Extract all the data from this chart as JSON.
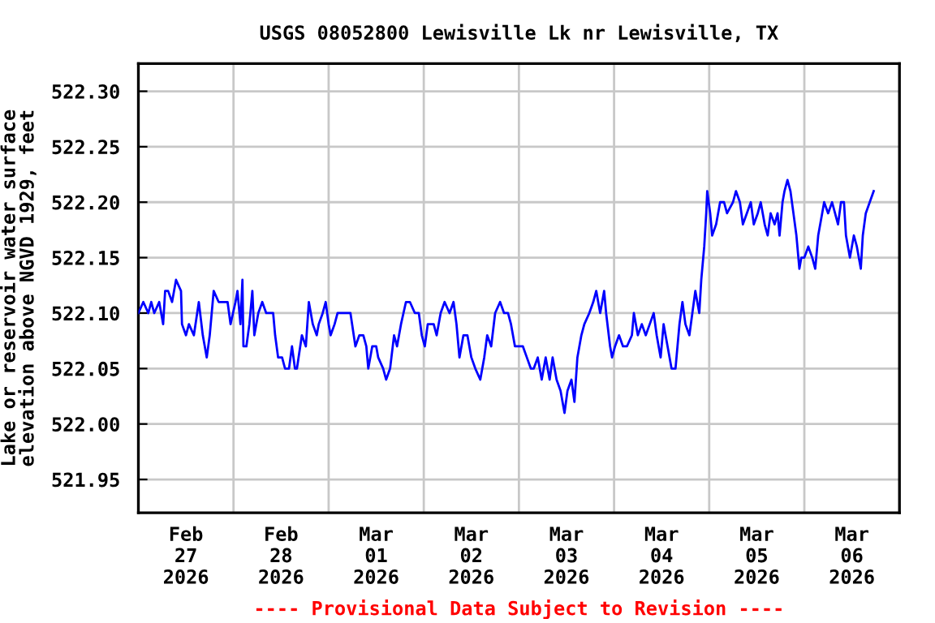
{
  "chart_data": {
    "type": "line",
    "title": "USGS 08052800 Lewisville Lk nr Lewisville, TX",
    "ylabel": "Lake or reservoir water surface\nelevation above NGVD 1929, feet",
    "annotations": [
      "---- Provisional Data Subject to Revision ----"
    ],
    "xlim": [
      "2026-02-27",
      "2026-03-07"
    ],
    "xticks": [
      {
        "value": "2026-02-28",
        "label": null
      },
      {
        "value": "2026-03-01",
        "label": null
      },
      {
        "value": "2026-03-02",
        "label": null
      },
      {
        "value": "2026-03-03",
        "label": null
      },
      {
        "value": "2026-03-04",
        "label": null
      },
      {
        "value": "2026-03-05",
        "label": null
      },
      {
        "value": "2026-03-06",
        "label": null
      },
      {
        "value": "2026-02-27T12:00",
        "label": "Feb\n27\n2026"
      },
      {
        "value": "2026-02-28T12:00",
        "label": "Feb\n28\n2026"
      },
      {
        "value": "2026-03-01T12:00",
        "label": "Mar\n01\n2026"
      },
      {
        "value": "2026-03-02T12:00",
        "label": "Mar\n02\n2026"
      },
      {
        "value": "2026-03-03T12:00",
        "label": "Mar\n03\n2026"
      },
      {
        "value": "2026-03-04T12:00",
        "label": "Mar\n04\n2026"
      },
      {
        "value": "2026-03-05T12:00",
        "label": "Mar\n05\n2026"
      },
      {
        "value": "2026-03-06T12:00",
        "label": "Mar\n06\n2026"
      }
    ],
    "ylim": [
      521.92,
      522.325
    ],
    "yticks": [
      {
        "value": 521.95,
        "label": "521.95"
      },
      {
        "value": 522.0,
        "label": "522.00"
      },
      {
        "value": 522.05,
        "label": "522.05"
      },
      {
        "value": 522.1,
        "label": "522.10"
      },
      {
        "value": 522.15,
        "label": "522.15"
      },
      {
        "value": 522.2,
        "label": "522.20"
      },
      {
        "value": 522.25,
        "label": "522.25"
      },
      {
        "value": 522.3,
        "label": "522.30"
      }
    ],
    "grid": true,
    "series": [
      {
        "color": "#0000ff",
        "x": [
          "2026-02-27T00:00",
          "2026-02-27T01:15",
          "2026-02-27T02:30",
          "2026-02-27T03:15",
          "2026-02-27T04:00",
          "2026-02-27T05:15",
          "2026-02-27T06:15",
          "2026-02-27T06:45",
          "2026-02-27T07:30",
          "2026-02-27T08:30",
          "2026-02-27T09:30",
          "2026-02-27T10:45",
          "2026-02-27T11:00",
          "2026-02-27T12:00",
          "2026-02-27T12:45",
          "2026-02-27T14:00",
          "2026-02-27T15:15",
          "2026-02-27T16:15",
          "2026-02-27T17:15",
          "2026-02-27T18:00",
          "2026-02-27T19:00",
          "2026-02-27T20:15",
          "2026-02-27T22:30",
          "2026-02-27T23:15",
          "2026-02-28T00:30",
          "2026-02-28T01:00",
          "2026-02-28T01:45",
          "2026-02-28T02:15",
          "2026-02-28T02:30",
          "2026-02-28T03:15",
          "2026-02-28T04:00",
          "2026-02-28T04:45",
          "2026-02-28T05:15",
          "2026-02-28T06:15",
          "2026-02-28T07:15",
          "2026-02-28T08:15",
          "2026-02-28T10:00",
          "2026-02-28T10:30",
          "2026-02-28T11:15",
          "2026-02-28T12:15",
          "2026-02-28T13:00",
          "2026-02-28T14:00",
          "2026-02-28T14:45",
          "2026-02-28T15:30",
          "2026-02-28T16:00",
          "2026-02-28T17:15",
          "2026-02-28T18:15",
          "2026-02-28T19:00",
          "2026-02-28T20:00",
          "2026-02-28T21:00",
          "2026-02-28T21:30",
          "2026-02-28T22:30",
          "2026-02-28T23:15",
          "2026-03-01T00:00",
          "2026-03-01T00:30",
          "2026-03-01T01:30",
          "2026-03-01T02:15",
          "2026-03-01T05:30",
          "2026-03-01T06:45",
          "2026-03-01T07:45",
          "2026-03-01T08:45",
          "2026-03-01T09:30",
          "2026-03-01T10:00",
          "2026-03-01T11:00",
          "2026-03-01T12:00",
          "2026-03-01T12:30",
          "2026-03-01T13:45",
          "2026-03-01T14:30",
          "2026-03-01T15:30",
          "2026-03-01T16:30",
          "2026-03-01T17:15",
          "2026-03-01T18:15",
          "2026-03-01T19:30",
          "2026-03-01T20:30",
          "2026-03-01T21:45",
          "2026-03-01T22:45",
          "2026-03-01T23:30",
          "2026-03-02T00:15",
          "2026-03-02T01:00",
          "2026-03-02T02:30",
          "2026-03-02T03:15",
          "2026-03-02T04:15",
          "2026-03-02T05:15",
          "2026-03-02T06:30",
          "2026-03-02T07:30",
          "2026-03-02T08:15",
          "2026-03-02T09:00",
          "2026-03-02T10:00",
          "2026-03-02T11:00",
          "2026-03-02T12:00",
          "2026-03-02T13:00",
          "2026-03-02T14:15",
          "2026-03-02T15:15",
          "2026-03-02T16:00",
          "2026-03-02T17:00",
          "2026-03-02T18:00",
          "2026-03-02T19:15",
          "2026-03-02T20:15",
          "2026-03-02T21:15",
          "2026-03-02T22:00",
          "2026-03-02T23:00",
          "2026-03-03T00:00",
          "2026-03-03T01:00",
          "2026-03-03T02:00",
          "2026-03-03T03:00",
          "2026-03-03T03:45",
          "2026-03-03T04:45",
          "2026-03-03T05:45",
          "2026-03-03T06:45",
          "2026-03-03T07:45",
          "2026-03-03T08:30",
          "2026-03-03T09:30",
          "2026-03-03T10:30",
          "2026-03-03T11:30",
          "2026-03-03T12:15",
          "2026-03-03T13:15",
          "2026-03-03T14:00",
          "2026-03-03T14:45",
          "2026-03-03T15:45",
          "2026-03-03T16:30",
          "2026-03-03T17:45",
          "2026-03-03T18:45",
          "2026-03-03T19:30",
          "2026-03-03T20:30",
          "2026-03-03T21:30",
          "2026-03-03T22:00",
          "2026-03-03T23:00",
          "2026-03-03T23:30",
          "2026-03-04T00:15",
          "2026-03-04T01:15",
          "2026-03-04T02:15",
          "2026-03-04T03:15",
          "2026-03-04T04:30",
          "2026-03-04T05:00",
          "2026-03-04T06:00",
          "2026-03-04T07:00",
          "2026-03-04T08:00",
          "2026-03-04T09:00",
          "2026-03-04T10:00",
          "2026-03-04T10:45",
          "2026-03-04T11:45",
          "2026-03-04T12:30",
          "2026-03-04T13:30",
          "2026-03-04T14:30",
          "2026-03-04T15:30",
          "2026-03-04T16:30",
          "2026-03-04T17:15",
          "2026-03-04T18:00",
          "2026-03-04T19:00",
          "2026-03-04T19:45",
          "2026-03-04T20:30",
          "2026-03-04T21:30",
          "2026-03-04T22:00",
          "2026-03-04T22:45",
          "2026-03-04T23:15",
          "2026-03-04T23:30",
          "2026-03-05T00:15",
          "2026-03-05T00:45",
          "2026-03-05T01:45",
          "2026-03-05T02:45",
          "2026-03-05T03:45",
          "2026-03-05T04:30",
          "2026-03-05T06:00",
          "2026-03-05T06:45",
          "2026-03-05T07:45",
          "2026-03-05T08:30",
          "2026-03-05T09:30",
          "2026-03-05T10:30",
          "2026-03-05T11:15",
          "2026-03-05T12:15",
          "2026-03-05T13:00",
          "2026-03-05T14:00",
          "2026-03-05T14:45",
          "2026-03-05T15:30",
          "2026-03-05T16:30",
          "2026-03-05T17:15",
          "2026-03-05T17:45",
          "2026-03-05T18:30",
          "2026-03-05T19:00",
          "2026-03-05T19:45",
          "2026-03-05T20:30",
          "2026-03-05T21:15",
          "2026-03-05T22:00",
          "2026-03-05T22:45",
          "2026-03-05T23:15",
          "2026-03-06T00:00",
          "2026-03-06T01:00",
          "2026-03-06T02:00",
          "2026-03-06T02:45",
          "2026-03-06T03:30",
          "2026-03-06T04:30",
          "2026-03-06T05:00",
          "2026-03-06T06:00",
          "2026-03-06T07:00",
          "2026-03-06T07:45",
          "2026-03-06T08:30",
          "2026-03-06T09:15",
          "2026-03-06T10:00",
          "2026-03-06T10:30",
          "2026-03-06T11:30",
          "2026-03-06T12:30",
          "2026-03-06T13:15",
          "2026-03-06T14:15",
          "2026-03-06T14:45",
          "2026-03-06T15:30",
          "2026-03-06T16:30",
          "2026-03-06T17:30"
        ],
        "values": [
          522.1,
          522.11,
          522.1,
          522.11,
          522.1,
          522.11,
          522.09,
          522.12,
          522.12,
          522.11,
          522.13,
          522.12,
          522.09,
          522.08,
          522.09,
          522.08,
          522.11,
          522.08,
          522.06,
          522.08,
          522.12,
          522.11,
          522.11,
          522.09,
          522.11,
          522.12,
          522.09,
          522.13,
          522.07,
          522.07,
          522.09,
          522.12,
          522.08,
          522.1,
          522.11,
          522.1,
          522.1,
          522.08,
          522.06,
          522.06,
          522.05,
          522.05,
          522.07,
          522.05,
          522.05,
          522.08,
          522.07,
          522.11,
          522.09,
          522.08,
          522.09,
          522.1,
          522.11,
          522.09,
          522.08,
          522.09,
          522.1,
          522.1,
          522.07,
          522.08,
          522.08,
          522.07,
          522.05,
          522.07,
          522.07,
          522.06,
          522.05,
          522.04,
          522.05,
          522.08,
          522.07,
          522.09,
          522.11,
          522.11,
          522.1,
          522.1,
          522.08,
          522.07,
          522.09,
          522.09,
          522.08,
          522.1,
          522.11,
          522.1,
          522.11,
          522.09,
          522.06,
          522.08,
          522.08,
          522.06,
          522.05,
          522.04,
          522.06,
          522.08,
          522.07,
          522.1,
          522.11,
          522.1,
          522.1,
          522.09,
          522.07,
          522.07,
          522.07,
          522.06,
          522.05,
          522.05,
          522.06,
          522.04,
          522.06,
          522.04,
          522.06,
          522.04,
          522.03,
          522.01,
          522.03,
          522.04,
          522.02,
          522.06,
          522.08,
          522.09,
          522.1,
          522.11,
          522.12,
          522.1,
          522.12,
          522.1,
          522.07,
          522.06,
          522.07,
          522.08,
          522.07,
          522.07,
          522.08,
          522.1,
          522.08,
          522.09,
          522.08,
          522.09,
          522.1,
          522.08,
          522.06,
          522.09,
          522.07,
          522.05,
          522.05,
          522.09,
          522.11,
          522.09,
          522.08,
          522.1,
          522.12,
          522.1,
          522.13,
          522.16,
          522.19,
          522.21,
          522.19,
          522.17,
          522.18,
          522.2,
          522.2,
          522.19,
          522.2,
          522.21,
          522.2,
          522.18,
          522.19,
          522.2,
          522.18,
          522.19,
          522.2,
          522.18,
          522.17,
          522.19,
          522.18,
          522.19,
          522.17,
          522.2,
          522.21,
          522.22,
          522.21,
          522.19,
          522.17,
          522.14,
          522.15,
          522.15,
          522.16,
          522.15,
          522.14,
          522.17,
          522.19,
          522.2,
          522.19,
          522.2,
          522.19,
          522.18,
          522.2,
          522.2,
          522.17,
          522.15,
          522.17,
          522.16,
          522.14,
          522.17,
          522.19,
          522.2,
          522.21
        ]
      }
    ]
  }
}
